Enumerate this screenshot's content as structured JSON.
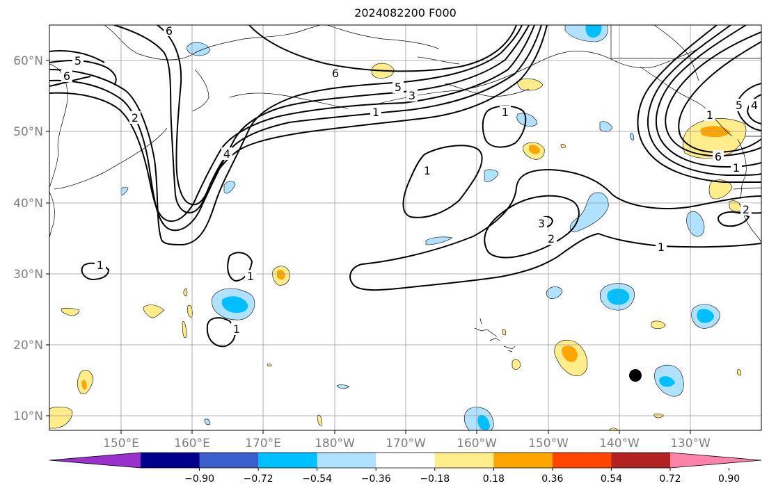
{
  "title": "2024082200 F000",
  "lat_labels": [
    "60°N",
    "50°N",
    "40°N",
    "30°N",
    "20°N",
    "10°N"
  ],
  "lon_labels": [
    "150°E",
    "160°E",
    "170°E",
    "180°W",
    "170°W",
    "160°W",
    "150°W",
    "140°W",
    "130°W"
  ],
  "colorbar": {
    "tick_labels": [
      "−0.90",
      "−0.72",
      "−0.54",
      "−0.36",
      "−0.18",
      "0.18",
      "0.36",
      "0.54",
      "0.72",
      "0.90"
    ],
    "colors": [
      "#9932cc",
      "#00008b",
      "#3a5fcd",
      "#00bfff",
      "#b0e2ff",
      "#ffffff",
      "#ffec8b",
      "#ffa500",
      "#ff4500",
      "#b22222",
      "#ff82ab"
    ]
  },
  "contour_labels": [
    "6",
    "5",
    "6",
    "6",
    "5",
    "3",
    "1",
    "2",
    "4",
    "1",
    "1",
    "1",
    "3",
    "2",
    "1",
    "1",
    "1",
    "6",
    "5",
    "4",
    "1",
    "2",
    "1"
  ],
  "marker": "black-dot"
}
